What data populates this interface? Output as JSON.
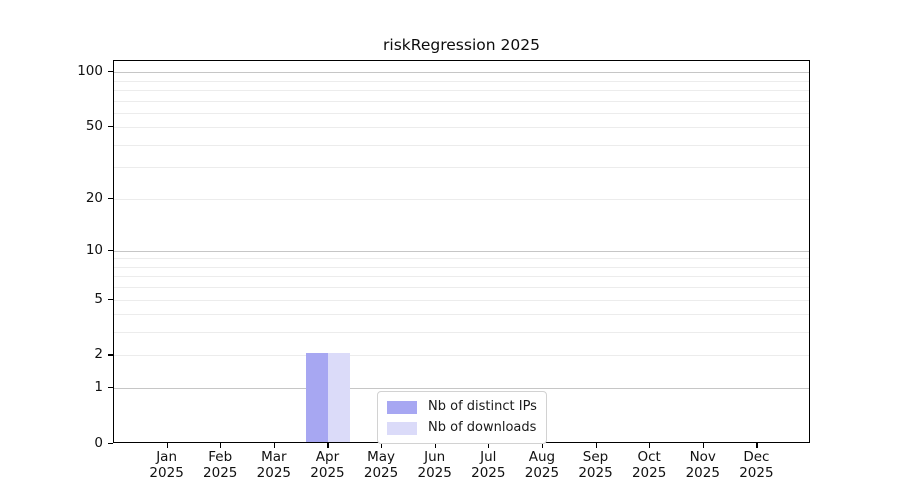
{
  "figure": {
    "title": "riskRegression 2025"
  },
  "chart_data": {
    "type": "bar",
    "title": "riskRegression 2025",
    "xlabel": "",
    "ylabel": "",
    "year": "2025",
    "categories": [
      "Jan",
      "Feb",
      "Mar",
      "Apr",
      "May",
      "Jun",
      "Jul",
      "Aug",
      "Sep",
      "Oct",
      "Nov",
      "Dec"
    ],
    "series": [
      {
        "name": "Nb of distinct IPs",
        "color": "#a7a7f2",
        "values": [
          0,
          0,
          0,
          2,
          0,
          0,
          0,
          0,
          0,
          0,
          0,
          0
        ]
      },
      {
        "name": "Nb of downloads",
        "color": "#dbdbf9",
        "values": [
          0,
          0,
          0,
          2,
          0,
          0,
          0,
          0,
          0,
          0,
          0,
          0
        ]
      }
    ],
    "y_scale": "log1p",
    "ylim": [
      0,
      115
    ],
    "y_tick_values": [
      0,
      1,
      2,
      5,
      10,
      20,
      50,
      100
    ],
    "y_decade_gridlines": [
      1,
      10,
      100
    ],
    "y_minor_gridlines": [
      2,
      3,
      4,
      5,
      6,
      7,
      8,
      9,
      20,
      30,
      40,
      50,
      60,
      70,
      80,
      90
    ],
    "grid": "horizontal",
    "legend_position": "lower center"
  },
  "colors": {
    "axis": "#000000",
    "major_grid": "#c6c6c6",
    "minor_grid": "#ececec",
    "legend_border": "#d2d2d2",
    "background": "#ffffff"
  }
}
